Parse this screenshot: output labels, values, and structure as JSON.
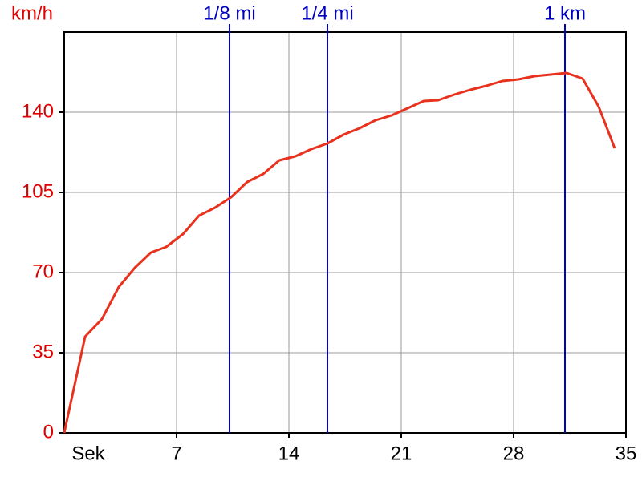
{
  "chart_data": {
    "type": "line",
    "ylabel": "km/h",
    "xlabel": "Sek",
    "x": [
      0,
      1.3,
      2.35,
      3.4,
      4.4,
      5.4,
      6.35,
      7.4,
      8.4,
      9.4,
      10.4,
      11.4,
      12.4,
      13.4,
      14.4,
      15.4,
      16.4,
      17.4,
      18.4,
      19.4,
      20.4,
      21.4,
      22.4,
      23.3,
      24.3,
      25.3,
      26.3,
      27.3,
      28.3,
      29.3,
      30.3,
      31.3,
      32.3,
      33.3,
      34.3
    ],
    "series": [
      {
        "color": "#e8321e",
        "values": [
          0,
          42,
          49.7,
          63.7,
          72.1,
          78.75,
          81.2,
          86.8,
          94.85,
          98.35,
          102.9,
          109.55,
          113.05,
          119,
          120.75,
          123.9,
          126.35,
          130.2,
          133,
          136.5,
          138.6,
          141.75,
          144.9,
          145.25,
          147.7,
          149.8,
          151.55,
          153.65,
          154.35,
          155.75,
          156.45,
          157.15,
          154.7,
          142.45,
          124.25
        ]
      }
    ],
    "xlim": [
      0,
      35
    ],
    "xticks": [
      7,
      14,
      21,
      28,
      35
    ],
    "ylim": [
      0,
      175
    ],
    "yticks": [
      0,
      35,
      70,
      105,
      140
    ],
    "grid": true,
    "axis_label_color": "#e00000",
    "marker_color": "#0000c0",
    "markers": [
      {
        "label": "1/8 mi",
        "x": 10.3
      },
      {
        "label": "1/4 mi",
        "x": 16.4
      },
      {
        "label": "1 km",
        "x": 31.2
      }
    ]
  }
}
